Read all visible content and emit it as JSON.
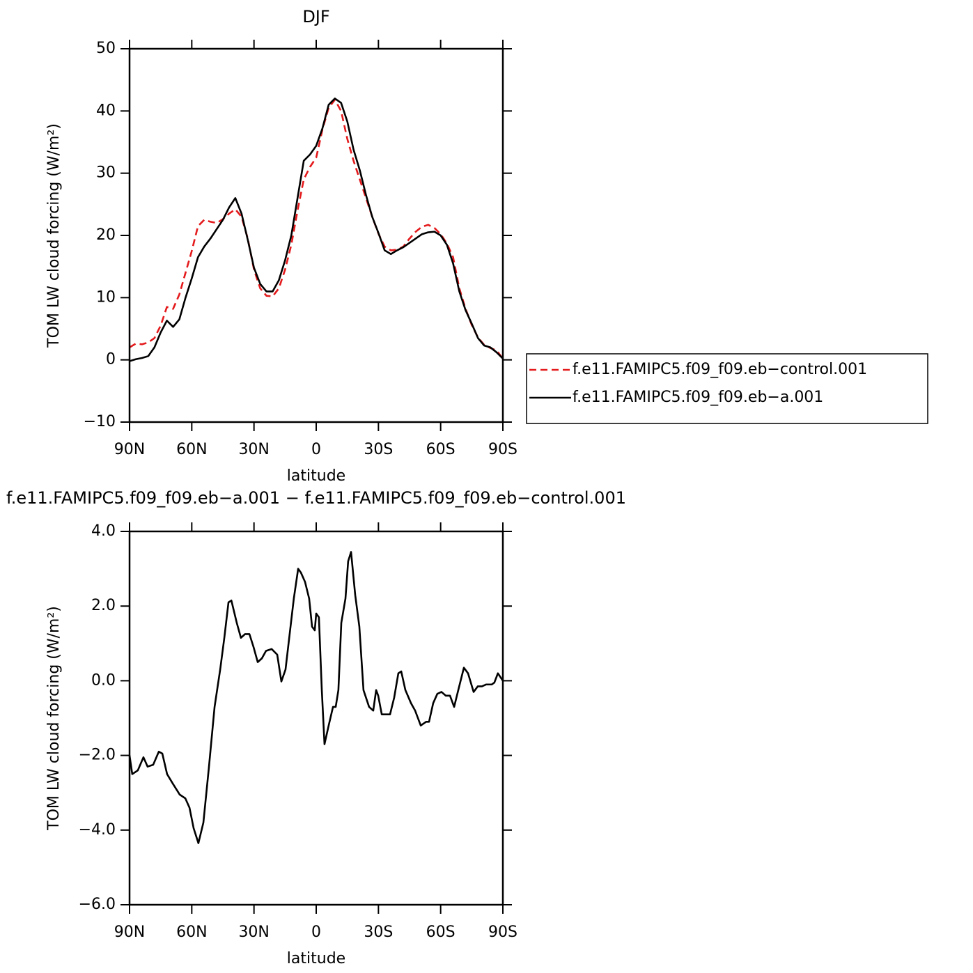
{
  "chart_data": [
    {
      "type": "line",
      "title": "DJF",
      "xlabel": "latitude",
      "ylabel": "TOM LW cloud forcing (W/m²)",
      "x": [
        90,
        87,
        84,
        81,
        78,
        75,
        72,
        69,
        66,
        63,
        60,
        57,
        54,
        51,
        48,
        45,
        42,
        39,
        36,
        33,
        30,
        27,
        24,
        21,
        18,
        15,
        12,
        9,
        6,
        3,
        0,
        -3,
        -6,
        -9,
        -12,
        -15,
        -18,
        -21,
        -24,
        -27,
        -30,
        -33,
        -36,
        -39,
        -42,
        -45,
        -48,
        -51,
        -54,
        -57,
        -60,
        -63,
        -66,
        -69,
        -72,
        -75,
        -78,
        -81,
        -84,
        -87,
        -90
      ],
      "xlim": [
        90,
        -90
      ],
      "xticks": [
        {
          "value": 90,
          "label": "90N"
        },
        {
          "value": 60,
          "label": "60N"
        },
        {
          "value": 30,
          "label": "30N"
        },
        0,
        {
          "value": -30,
          "label": "30S"
        },
        {
          "value": -60,
          "label": "60S"
        },
        {
          "value": -90,
          "label": "90S"
        }
      ],
      "ylim": [
        -10,
        50
      ],
      "yticks": [
        {
          "value": -10,
          "label": "−10"
        },
        0,
        10,
        20,
        30,
        40,
        50
      ],
      "legend": "right",
      "series": [
        {
          "name": "f.e11.FAMIPC5.f09_f09.eb−control.001",
          "color": "#e41a1c",
          "line_style": "dashed",
          "values": [
            2,
            2.6,
            2.5,
            2.8,
            3.5,
            5.5,
            8.5,
            8.2,
            10.5,
            14,
            17.5,
            21.5,
            22.5,
            22.2,
            22,
            22.6,
            23.5,
            24.2,
            23,
            19.5,
            14.5,
            11.5,
            10.3,
            10.2,
            11.5,
            14.5,
            18.5,
            24,
            29,
            31,
            32.5,
            37,
            40.5,
            41.8,
            40,
            35.5,
            32,
            29,
            26,
            23,
            20.3,
            18.2,
            17.6,
            17.7,
            18.2,
            19.5,
            20.6,
            21.4,
            21.7,
            21.2,
            20.2,
            18.7,
            16.5,
            11.5,
            8.2,
            5.6,
            3.6,
            2.4,
            1.9,
            1.5,
            0.2
          ]
        },
        {
          "name": "f.e11.FAMIPC5.f09_f09.eb−a.001",
          "color": "#000000",
          "line_style": "solid",
          "values": [
            -0.2,
            0.1,
            0.3,
            0.6,
            2.0,
            4.4,
            6.3,
            5.3,
            6.5,
            10.0,
            13.1,
            16.5,
            18.2,
            19.5,
            21,
            22.5,
            24.5,
            26,
            23.5,
            19.3,
            14.8,
            12.2,
            11,
            11,
            12.8,
            16,
            20,
            26,
            32,
            33,
            34.4,
            37.2,
            41,
            42,
            41.3,
            38.3,
            33.8,
            30.5,
            26.5,
            23,
            20.4,
            17.6,
            17,
            17.6,
            18.1,
            18.8,
            19.5,
            20.2,
            20.5,
            20.6,
            20,
            18.5,
            15.5,
            11,
            8,
            5.8,
            3.5,
            2.3,
            2,
            1.2,
            0.2
          ]
        }
      ]
    },
    {
      "type": "line",
      "title": "f.e11.FAMIPC5.f09_f09.eb−a.001 − f.e11.FAMIPC5.f09_f09.eb−control.001",
      "xlabel": "latitude",
      "ylabel": "TOM LW cloud forcing (W/m²)",
      "x": [
        90,
        88.7,
        86,
        83.3,
        81.3,
        78.6,
        75.9,
        74.2,
        71.9,
        69.2,
        65.8,
        63.1,
        61.1,
        59.1,
        56.8,
        54.4,
        51.7,
        49,
        46.3,
        44.3,
        42.3,
        40.9,
        38.3,
        36.3,
        34.3,
        32.2,
        30.2,
        28.2,
        26.2,
        24.2,
        21.5,
        18.8,
        16.8,
        14.8,
        12.8,
        10.8,
        8.7,
        7.4,
        5.4,
        3.4,
        2,
        0.7,
        0,
        -1.3,
        -2.7,
        -4,
        -6,
        -8.1,
        -9.4,
        -10.7,
        -12.1,
        -14.1,
        -15.4,
        -16.8,
        -18.8,
        -20.8,
        -22.8,
        -25.5,
        -27.5,
        -28.9,
        -29.9,
        -31.6,
        -33.6,
        -35.6,
        -37.6,
        -39.6,
        -41,
        -43,
        -45.7,
        -47.7,
        -50.4,
        -53,
        -54.4,
        -56.4,
        -58.4,
        -60.4,
        -62.5,
        -64.5,
        -66.5,
        -68.5,
        -71.2,
        -73.2,
        -75.9,
        -77.9,
        -79.9,
        -81.9,
        -84.6,
        -85.9,
        -87.6,
        -90
      ],
      "values": [
        -2.0,
        -2.5,
        -2.4,
        -2.05,
        -2.3,
        -2.25,
        -1.9,
        -1.95,
        -2.5,
        -2.75,
        -3.05,
        -3.15,
        -3.4,
        -3.95,
        -4.35,
        -3.8,
        -2.3,
        -0.7,
        0.3,
        1.15,
        2.1,
        2.15,
        1.55,
        1.15,
        1.25,
        1.25,
        0.9,
        0.5,
        0.6,
        0.8,
        0.85,
        0.7,
        -0.02,
        0.3,
        1.25,
        2.2,
        3.0,
        2.9,
        2.65,
        2.2,
        1.45,
        1.35,
        1.8,
        1.7,
        -0.25,
        -1.7,
        -1.2,
        -0.7,
        -0.7,
        -0.25,
        1.55,
        2.2,
        3.2,
        3.45,
        2.3,
        1.45,
        -0.25,
        -0.7,
        -0.8,
        -0.25,
        -0.4,
        -0.9,
        -0.9,
        -0.9,
        -0.45,
        0.2,
        0.25,
        -0.25,
        -0.6,
        -0.8,
        -1.2,
        -1.1,
        -1.1,
        -0.6,
        -0.35,
        -0.3,
        -0.4,
        -0.4,
        -0.7,
        -0.25,
        0.35,
        0.2,
        -0.3,
        -0.15,
        -0.15,
        -0.1,
        -0.1,
        -0.05,
        0.2,
        0
      ],
      "color": "#000000",
      "xlim": [
        90,
        -90
      ],
      "xticks": [
        {
          "value": 90,
          "label": "90N"
        },
        {
          "value": 60,
          "label": "60N"
        },
        {
          "value": 30,
          "label": "30N"
        },
        0,
        {
          "value": -30,
          "label": "30S"
        },
        {
          "value": -60,
          "label": "60S"
        },
        {
          "value": -90,
          "label": "90S"
        }
      ],
      "ylim": [
        -6,
        4
      ],
      "yticks": [
        {
          "value": -6,
          "label": "−6.0"
        },
        {
          "value": -4,
          "label": "−4.0"
        },
        {
          "value": -2,
          "label": "−2.0"
        },
        {
          "value": 0,
          "label": "0.0"
        },
        {
          "value": 2,
          "label": "2.0"
        },
        {
          "value": 4,
          "label": "4.0"
        }
      ]
    }
  ]
}
